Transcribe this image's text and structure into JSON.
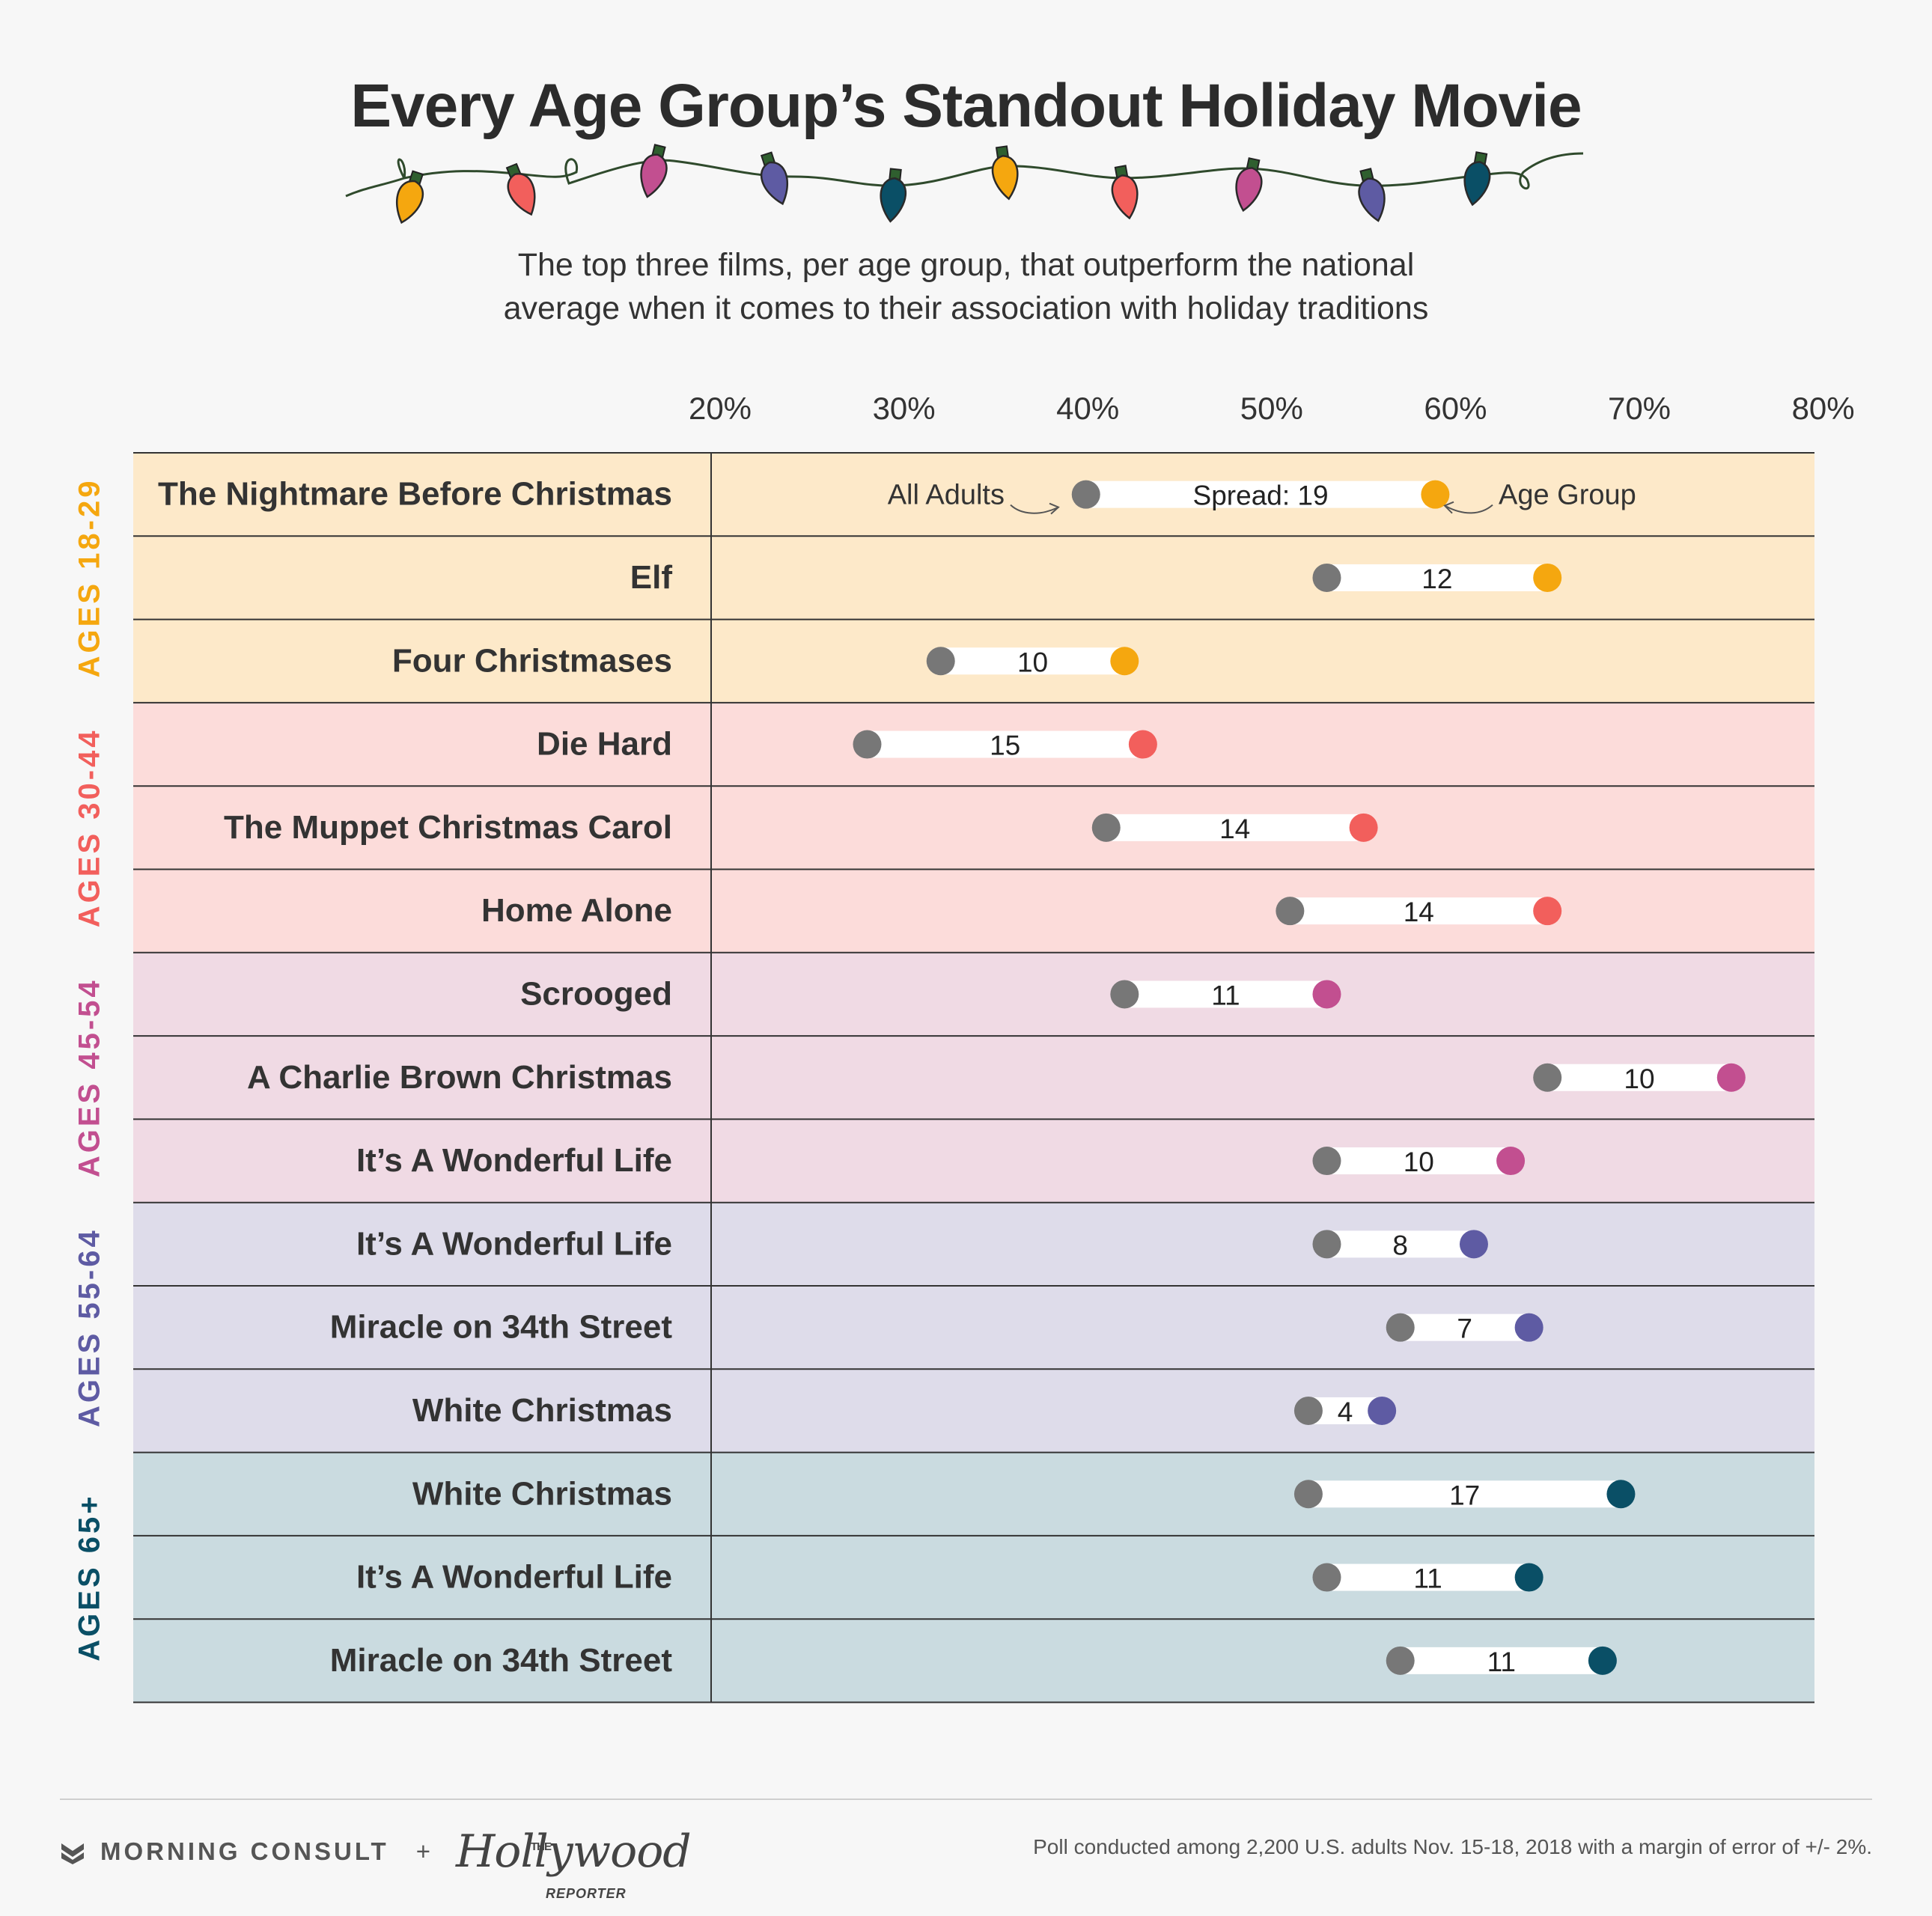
{
  "header": {
    "title": "Every Age Group’s Standout Holiday Movie",
    "subtitle_line1": "The top three films, per age group, that outperform the national",
    "subtitle_line2": "average when it comes to their association with holiday traditions"
  },
  "bulb_colors": [
    "#f5a70f",
    "#f25f5c",
    "#c24f90",
    "#5e5ba3",
    "#0a4f66",
    "#f5a70f",
    "#f25f5c",
    "#c24f90",
    "#5e5ba3",
    "#0a4f66"
  ],
  "colors": {
    "all_adults_dot": "#777777",
    "group_colors": [
      "#f5a70f",
      "#f25f5c",
      "#c24f90",
      "#5e5ba3",
      "#0a4f66"
    ],
    "group_backgrounds": [
      "#fde9c9",
      "#fcdcda",
      "#f0dae4",
      "#dedcea",
      "#cadbe0"
    ]
  },
  "chart_data": {
    "type": "dumbbell",
    "x_ticks": [
      "20%",
      "30%",
      "40%",
      "50%",
      "60%",
      "70%",
      "80%"
    ],
    "x_tick_values": [
      20,
      30,
      40,
      50,
      60,
      70,
      80
    ],
    "xlim": [
      20,
      80
    ],
    "annotations": {
      "all_adults": "All Adults",
      "age_group": "Age Group",
      "spread_prefix": "Spread: "
    },
    "groups": [
      {
        "label": "AGES 18-29",
        "rows": [
          {
            "film": "The Nightmare Before Christmas",
            "all_adults": 39.9,
            "age_group": 58.9,
            "spread": "19"
          },
          {
            "film": "Elf",
            "all_adults": 53.0,
            "age_group": 65.0,
            "spread": "12"
          },
          {
            "film": "Four Christmases",
            "all_adults": 32.0,
            "age_group": 42.0,
            "spread": "10"
          }
        ]
      },
      {
        "label": "AGES 30-44",
        "rows": [
          {
            "film": "Die Hard",
            "all_adults": 28.0,
            "age_group": 43.0,
            "spread": "15"
          },
          {
            "film": "The Muppet Christmas Carol",
            "all_adults": 41.0,
            "age_group": 55.0,
            "spread": "14"
          },
          {
            "film": "Home Alone",
            "all_adults": 51.0,
            "age_group": 65.0,
            "spread": "14"
          }
        ]
      },
      {
        "label": "AGES 45-54",
        "rows": [
          {
            "film": "Scrooged",
            "all_adults": 42.0,
            "age_group": 53.0,
            "spread": "11"
          },
          {
            "film": "A Charlie Brown Christmas",
            "all_adults": 65.0,
            "age_group": 75.0,
            "spread": "10"
          },
          {
            "film": "It’s A Wonderful Life",
            "all_adults": 53.0,
            "age_group": 63.0,
            "spread": "10"
          }
        ]
      },
      {
        "label": "AGES 55-64",
        "rows": [
          {
            "film": "It’s A Wonderful Life",
            "all_adults": 53.0,
            "age_group": 61.0,
            "spread": "8"
          },
          {
            "film": "Miracle on 34th Street",
            "all_adults": 57.0,
            "age_group": 64.0,
            "spread": "7"
          },
          {
            "film": "White Christmas",
            "all_adults": 52.0,
            "age_group": 56.0,
            "spread": "4"
          }
        ]
      },
      {
        "label": "AGES 65+",
        "rows": [
          {
            "film": "White Christmas",
            "all_adults": 52.0,
            "age_group": 69.0,
            "spread": "17"
          },
          {
            "film": "It’s A Wonderful Life",
            "all_adults": 53.0,
            "age_group": 64.0,
            "spread": "11"
          },
          {
            "film": "Miracle on 34th Street",
            "all_adults": 57.0,
            "age_group": 68.0,
            "spread": "11"
          }
        ]
      }
    ]
  },
  "footer": {
    "brand1": "MORNING CONSULT",
    "plus": "+",
    "brand2_the": "THE",
    "brand2": "Hollywood",
    "brand2_reporter": "REPORTER",
    "note": "Poll conducted among 2,200 U.S. adults Nov. 15-18, 2018 with a margin of error of +/- 2%."
  }
}
